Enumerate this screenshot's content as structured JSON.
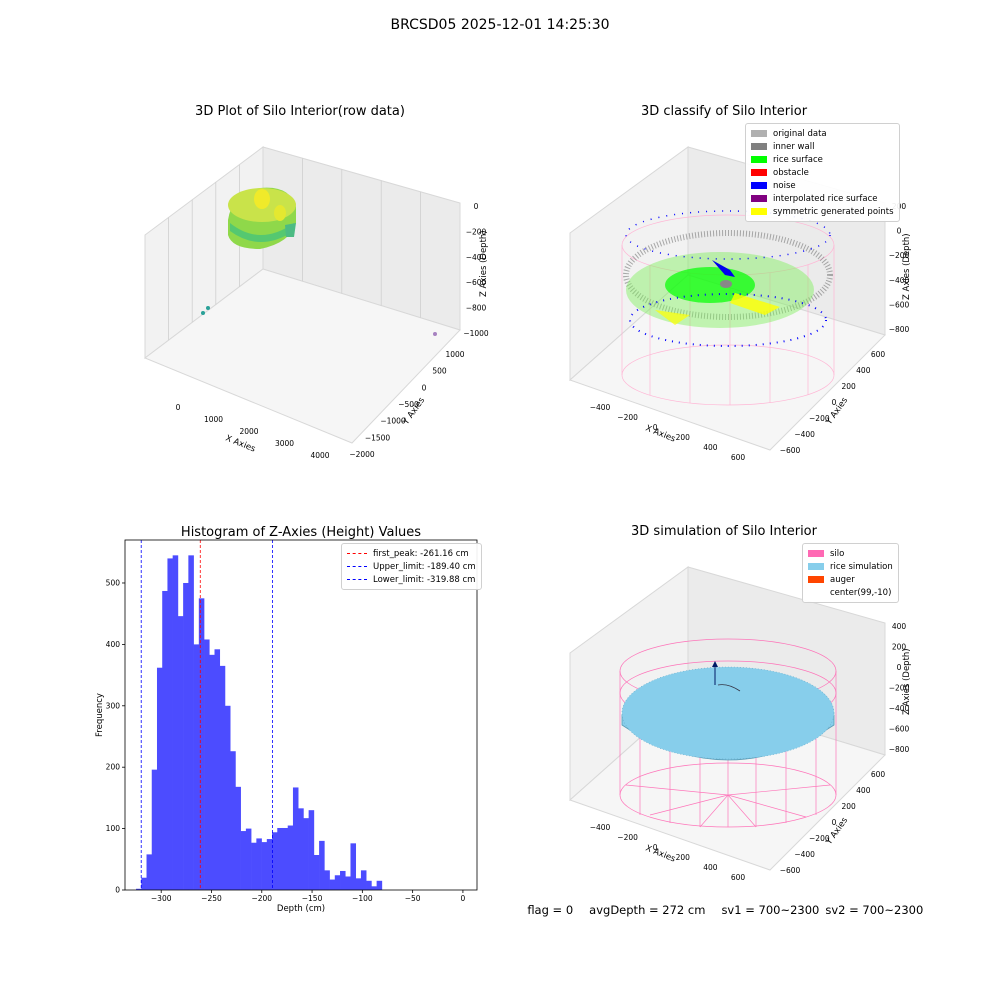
{
  "figure_title": "BRCSD05 2025-12-01 14:25:30",
  "panels": {
    "raw": {
      "title": "3D Plot of Silo Interior(row data)",
      "xlabel": "X Axies",
      "ylabel": "Y Axies",
      "zlabel": "Z Axies (Depth)",
      "xticks": [
        "0",
        "1000",
        "2000",
        "3000",
        "4000"
      ],
      "yticks": [
        "1000",
        "500",
        "0",
        "−500",
        "−1000",
        "−1500",
        "−2000"
      ],
      "zticks": [
        "0",
        "−200",
        "−400",
        "−600",
        "−800",
        "−1000"
      ]
    },
    "classify": {
      "title": "3D classify of Silo Interior",
      "xlabel": "X Axies",
      "ylabel": "Y Axies",
      "zlabel": "Z Axies (Depth)",
      "xticks": [
        "−400",
        "−200",
        "0",
        "200",
        "400",
        "600"
      ],
      "yticks": [
        "600",
        "400",
        "200",
        "0",
        "−200",
        "−400",
        "−600"
      ],
      "zticks": [
        "200",
        "0",
        "−200",
        "−400",
        "−600",
        "−800"
      ],
      "legend": [
        {
          "label": "original data",
          "color": "#b0b0b0"
        },
        {
          "label": "inner wall",
          "color": "#808080"
        },
        {
          "label": "rice surface",
          "color": "#00ff00"
        },
        {
          "label": "obstacle",
          "color": "#ff0000"
        },
        {
          "label": "noise",
          "color": "#0000ff"
        },
        {
          "label": "interpolated rice surface",
          "color": "#800080"
        },
        {
          "label": "symmetric generated points",
          "color": "#ffff00"
        }
      ]
    },
    "simulation": {
      "title": "3D simulation of Silo Interior",
      "xlabel": "X Axies",
      "ylabel": "Y Axies",
      "zlabel": "Z Axies (Depth)",
      "xticks": [
        "−400",
        "−200",
        "0",
        "200",
        "400",
        "600"
      ],
      "yticks": [
        "600",
        "400",
        "200",
        "0",
        "−200",
        "−400",
        "−600"
      ],
      "zticks": [
        "400",
        "200",
        "0",
        "−200",
        "−400",
        "−600",
        "−800"
      ],
      "legend": [
        {
          "label": "silo",
          "color": "#ff69b4"
        },
        {
          "label": "rice simulation",
          "color": "#87ceeb"
        },
        {
          "label": "auger",
          "color": "#ff4500"
        },
        {
          "label": "center(99,-10)",
          "color": ""
        }
      ]
    }
  },
  "chart_data": {
    "type": "bar",
    "title": "Histogram of Z-Axies (Height) Values",
    "xlabel": "Depth (cm)",
    "ylabel": "Frequency",
    "xlim": [
      -336,
      14
    ],
    "ylim": [
      0,
      570
    ],
    "xticks": [
      -300,
      -250,
      -200,
      -150,
      -100,
      -50,
      0
    ],
    "xtick_labels": [
      "−300",
      "−250",
      "−200",
      "−150",
      "−100",
      "−50",
      "0"
    ],
    "yticks": [
      0,
      100,
      200,
      300,
      400,
      500
    ],
    "bin_start": -325,
    "bin_width": 5.2,
    "values": [
      2,
      20,
      58,
      196,
      362,
      487,
      540,
      545,
      446,
      500,
      545,
      400,
      475,
      408,
      383,
      392,
      365,
      300,
      226,
      168,
      96,
      100,
      77,
      84,
      78,
      83,
      94,
      101,
      101,
      105,
      167,
      133,
      117,
      130,
      57,
      80,
      32,
      17,
      24,
      31,
      22,
      76,
      19,
      32,
      15,
      6,
      15
    ],
    "bar_color": "#4c4cff",
    "series": [
      {
        "name": "first_peak: -261.16 cm",
        "x": -261.16,
        "color": "#ff0000"
      },
      {
        "name": "Upper_limit: -189.40 cm",
        "x": -189.4,
        "color": "#0000ff"
      },
      {
        "name": "Lower_limit: -319.88 cm",
        "x": -319.88,
        "color": "#0000ff"
      }
    ],
    "legend_position": "top-right"
  },
  "footer": {
    "flag": "flag = 0",
    "avg_depth": "avgDepth = 272 cm",
    "sv1": "sv1 = 700~2300",
    "sv2": "sv2 = 700~2300"
  }
}
